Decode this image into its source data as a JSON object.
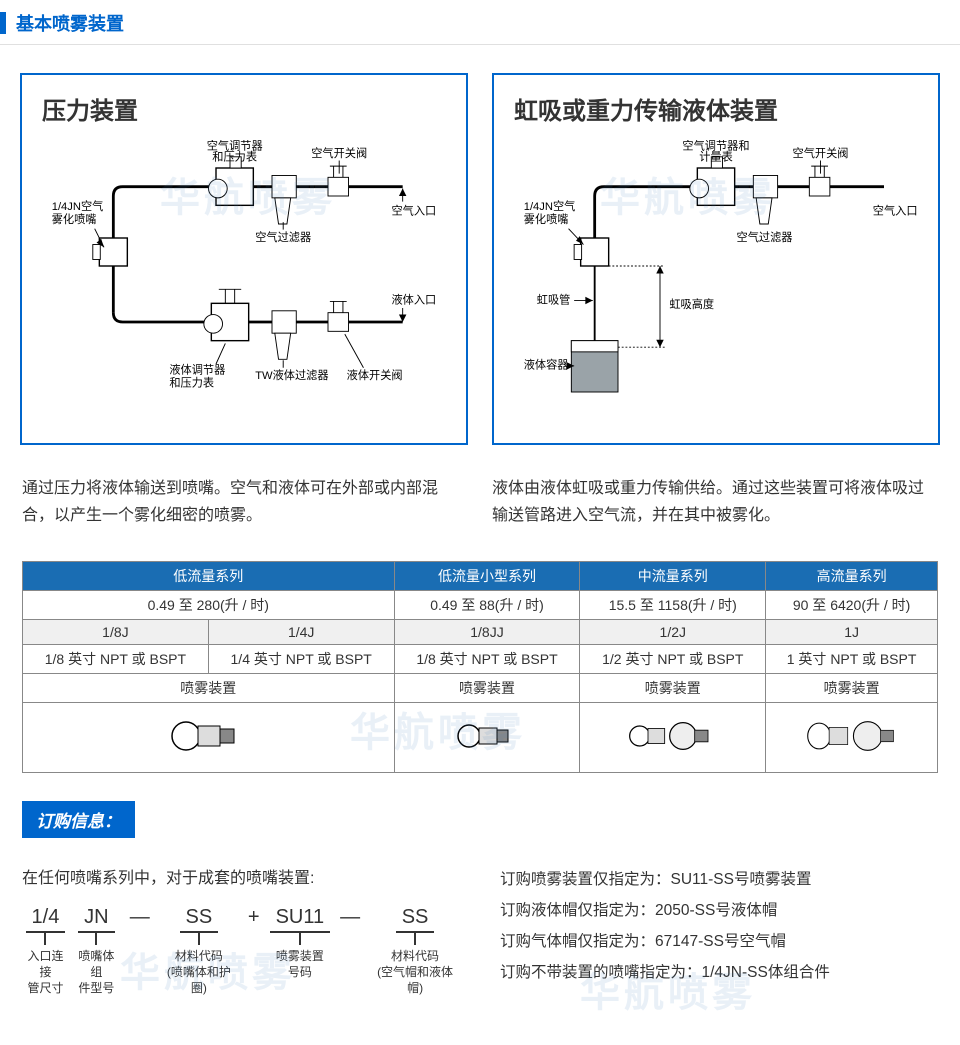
{
  "section_title": "基本喷雾装置",
  "watermark": "华航喷雾",
  "diagram1": {
    "title": "压力装置",
    "labels": {
      "nozzle": "1/4JN空气\n雾化喷嘴",
      "regulator_air": "空气调节器\n和压力表",
      "shutoff_air": "空气开关阀",
      "air_inlet": "空气入口",
      "air_filter": "空气过滤器",
      "regulator_liq": "液体调节器\n和压力表",
      "liq_filter": "TW液体过滤器",
      "shutoff_liq": "液体开关阀",
      "liq_inlet": "液体入口"
    },
    "desc": "通过压力将液体输送到喷嘴。空气和液体可在外部或内部混合，以产生一个雾化细密的喷雾。"
  },
  "diagram2": {
    "title": "虹吸或重力传输液体装置",
    "labels": {
      "nozzle": "1/4JN空气\n雾化喷嘴",
      "regulator_air": "空气调节器和\n计量表",
      "shutoff_air": "空气开关阀",
      "air_inlet": "空气入口",
      "air_filter": "空气过滤器",
      "siphon_tube": "虹吸管",
      "siphon_height": "虹吸高度",
      "container": "液体容器"
    },
    "desc": "液体由液体虹吸或重力传输供给。通过这些装置可将液体吸过输送管路进入空气流，并在其中被雾化。"
  },
  "flow_table": {
    "headers": [
      "低流量系列",
      "低流量小型系列",
      "中流量系列",
      "高流量系列"
    ],
    "ranges": [
      "0.49 至 280(升 / 时)",
      "0.49 至 88(升 / 时)",
      "15.5 至 1158(升 / 时)",
      "90 至 6420(升 / 时)"
    ],
    "models_low": [
      "1/8J",
      "1/4J"
    ],
    "model_small": "1/8JJ",
    "model_mid": "1/2J",
    "model_high": "1J",
    "conn_low": [
      "1/8 英寸 NPT 或 BSPT",
      "1/4 英寸 NPT 或 BSPT"
    ],
    "conn_small": "1/8 英寸 NPT 或 BSPT",
    "conn_mid": "1/2 英寸 NPT 或 BSPT",
    "conn_high": "1 英寸 NPT 或 BSPT",
    "device_label": "喷雾装置"
  },
  "order": {
    "badge": "订购信息：",
    "intro": "在任何喷嘴系列中，对于成套的喷嘴装置:",
    "code": {
      "s1": "1/4",
      "l1": "入口连接\n管尺寸",
      "s2": "JN",
      "l2": "喷嘴体组\n件型号",
      "s3": "SS",
      "l3": "材料代码\n(喷嘴体和护圈)",
      "s4": "SU11",
      "l4": "喷雾装置\n号码",
      "s5": "SS",
      "l5": "材料代码\n(空气帽和液体帽)"
    },
    "lines": [
      "订购喷雾装置仅指定为：SU11-SS号喷雾装置",
      "订购液体帽仅指定为：2050-SS号液体帽",
      "订购气体帽仅指定为：67147-SS号空气帽",
      "订购不带装置的喷嘴指定为：1/4JN-SS体组合件"
    ]
  },
  "colors": {
    "accent": "#0066cc",
    "header": "#1a6db3"
  }
}
